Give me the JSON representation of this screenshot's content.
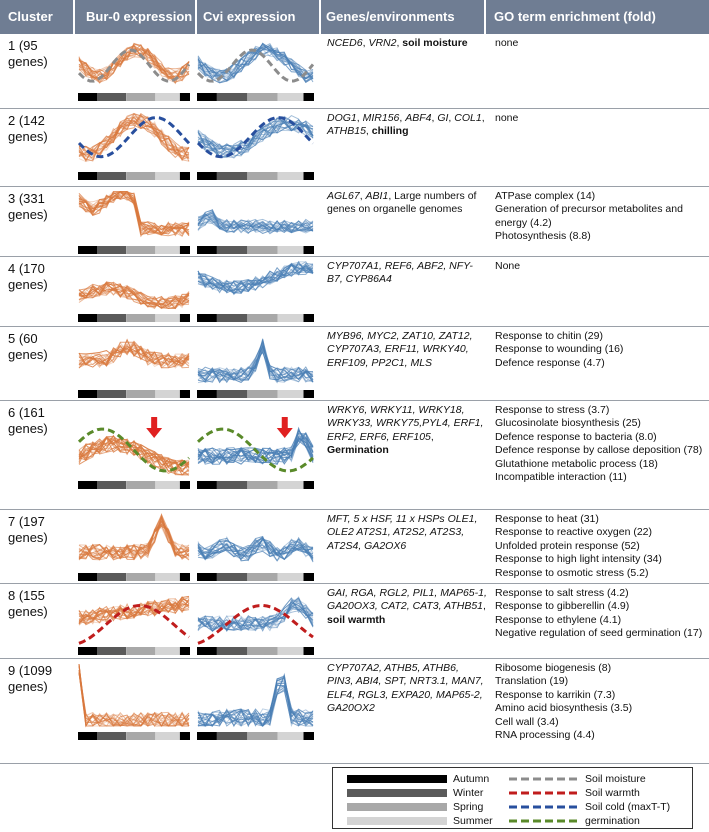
{
  "headers": [
    "Cluster",
    "Bur-0 expression",
    "Cvi expression",
    "Genes/environments",
    "GO term enrichment (fold)"
  ],
  "rows": [
    {
      "label": "1 (95 genes)",
      "genes": [
        {
          "t": "NCED6",
          "s": "i"
        },
        {
          "t": ", ",
          "s": ""
        },
        {
          "t": "VRN2",
          "s": "i"
        },
        {
          "t": ", ",
          "s": ""
        },
        {
          "t": "soil moisture",
          "s": "b"
        }
      ],
      "go": [
        "none"
      ]
    },
    {
      "label": "2 (142 genes)",
      "genes": [
        {
          "t": "DOG1",
          "s": "i"
        },
        {
          "t": ", ",
          "s": ""
        },
        {
          "t": "MIR156",
          "s": "i"
        },
        {
          "t": ", ",
          "s": ""
        },
        {
          "t": "ABF4",
          "s": "i"
        },
        {
          "t": ", ",
          "s": ""
        },
        {
          "t": "GI",
          "s": "i"
        },
        {
          "t": ", ",
          "s": ""
        },
        {
          "t": "COL1",
          "s": "i"
        },
        {
          "t": ", ",
          "s": ""
        },
        {
          "t": "ATHB15",
          "s": "i"
        },
        {
          "t": ", ",
          "s": ""
        },
        {
          "t": "chilling",
          "s": "b"
        }
      ],
      "go": [
        "none"
      ]
    },
    {
      "label": "3 (331 genes)",
      "genes": [
        {
          "t": "AGL67",
          "s": "i"
        },
        {
          "t": ", ",
          "s": ""
        },
        {
          "t": "ABI1",
          "s": "i"
        },
        {
          "t": ", Large numbers of genes on organelle genomes",
          "s": ""
        }
      ],
      "go": [
        "ATPase complex (14)",
        "Generation of precursor metabolites and energy (4.2)",
        "Photosynthesis (8.8)"
      ]
    },
    {
      "label": "4 (170 genes)",
      "genes": [
        {
          "t": "CYP707A1, REF6, ABF2, NFY-B7, CYP86A4",
          "s": "i"
        }
      ],
      "go": [
        "None"
      ]
    },
    {
      "label": "5 (60 genes)",
      "genes": [
        {
          "t": "MYB96, MYC2, ZAT10, ZAT12, CYP707A3, ERF11, WRKY40, ERF109, PP2C1, MLS",
          "s": "i"
        }
      ],
      "go": [
        "Response to chitin (29)",
        "Response to wounding (16)",
        "Defence response (4.7)"
      ]
    },
    {
      "label": "6 (161 genes)",
      "genes": [
        {
          "t": "WRKY6, WRKY11, WRKY18, WRKY33, WRKY75,PYL4, ERF1, ERF2, ERF6, ERF105",
          "s": "i"
        },
        {
          "t": ", ",
          "s": ""
        },
        {
          "t": "Germination",
          "s": "b"
        }
      ],
      "go": [
        "Response to stress (3.7)",
        "Glucosinolate biosynthesis (25)",
        "Defence response to bacteria (8.0)",
        "Defence response by callose deposition (78)",
        "Glutathione metabolic process (18)",
        "Incompatible interaction (11)"
      ]
    },
    {
      "label": "7 (197 genes)",
      "genes": [
        {
          "t": "MFT, 5 x HSF, 11 x HSPs OLE1, OLE2 AT2S1, AT2S2, AT2S3, AT2S4, GA2OX6",
          "s": "i"
        }
      ],
      "go": [
        "Response to heat (31)",
        "Response to reactive oxygen (22)",
        "Unfolded protein response (52)",
        "Response to high light intensity (34)",
        "Response to osmotic stress (5.2)"
      ]
    },
    {
      "label": "8 (155 genes)",
      "genes": [
        {
          "t": "GAI, RGA, RGL2, PIL1, MAP65-1, GA20OX3, CAT2, CAT3, ATHB51",
          "s": "i"
        },
        {
          "t": ", ",
          "s": ""
        },
        {
          "t": "soil warmth",
          "s": "b"
        }
      ],
      "go": [
        "Response to salt stress (4.2)",
        "Response to gibberellin (4.9)",
        "Response to ethylene (4.1)",
        "Negative regulation of seed germination (17)"
      ]
    },
    {
      "label": "9 (1099 genes)",
      "genes": [
        {
          "t": "CYP707A2, ATHB5, ATHB6, PIN3, ABI4, SPT, NRT3.1, MAN7, ELF4, RGL3, EXPA20, MAP65-2, GA20OX2",
          "s": "i"
        }
      ],
      "go": [
        "Ribosome biogenesis (8)",
        "Translation (19)",
        "Response to karrikin (7.3)",
        "Amino acid biosynthesis (3.5)",
        "Cell wall (3.4)",
        "RNA processing (4.4)"
      ]
    }
  ],
  "legend": {
    "seasons": [
      "Autumn",
      "Winter",
      "Spring",
      "Summer"
    ],
    "environments": [
      "Soil moisture",
      "Soil warmth",
      "Soil cold (maxT-T)",
      "germination"
    ]
  },
  "colors": {
    "header_bg": "#6f7d93",
    "bur": "#d9793e",
    "cvi": "#4a7fb5",
    "autumn": "#000000",
    "winter": "#5a5a5a",
    "spring": "#a8a8a8",
    "summer": "#d4d4d4",
    "soil_moisture": "#8c8c8c",
    "soil_warmth": "#c01d1d",
    "soil_cold": "#284f9e",
    "germination": "#5a8a2a"
  }
}
